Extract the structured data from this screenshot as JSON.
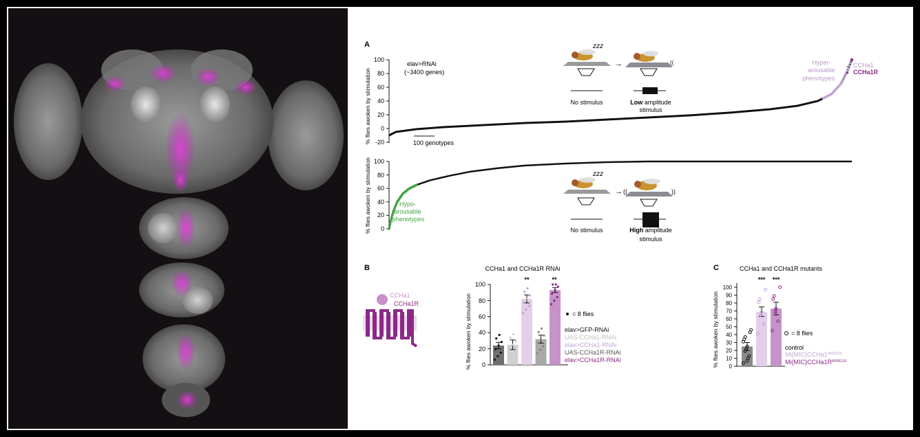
{
  "colors": {
    "black": "#111111",
    "hyper": "#c3a4d6",
    "ccha1r": "#8b2a86",
    "green": "#46a446",
    "grey_bar": "#6f6f6f",
    "light_grey_bar": "#d0d0d0",
    "light_purple_bar": "#e3cfe8",
    "mid_purple_bar": "#c692c9"
  },
  "panel_a": {
    "label": "A",
    "top": {
      "title_line1": "elav>RNAi",
      "title_line2": "(~3400 genes)",
      "ylabel": "% flies awoken by stimulation",
      "yticks": [
        "100",
        "80",
        "60",
        "40",
        "20",
        "0",
        "-20"
      ],
      "scalebar": "100 genotypes",
      "annotation_line1": "Hyper-",
      "annotation_line2": "arousable",
      "annotation_line3": "phenotypes",
      "marker1": "CCHa1",
      "marker2": "CCHa1R",
      "stim_left": "No stimulus",
      "stim_right_bold": "Low",
      "stim_right_rest": " amplitude",
      "stim_right_line2": "stimulus",
      "zzz": "zzz"
    },
    "bottom": {
      "ylabel": "% flies awoken by stimulation",
      "yticks": [
        "100",
        "80",
        "60",
        "40",
        "20",
        "0"
      ],
      "annotation_line1": "Hypo-",
      "annotation_line2": "arousable",
      "annotation_line3": "phenotypes",
      "stim_left": "No stimulus",
      "stim_right_bold": "High",
      "stim_right_rest": " amplitude",
      "stim_right_line2": "stimulus",
      "zzz": "zzz"
    }
  },
  "panel_b": {
    "label": "B",
    "title": "CCHa1 and CCHa1R RNAi",
    "ylabel": "% flies awoken by stimulation",
    "yticks": [
      "100",
      "80",
      "60",
      "40",
      "20",
      "0"
    ],
    "receptor_ligand": "CCHa1",
    "receptor_name": "CCHa1R",
    "dot_legend": "= 8 flies",
    "legend": [
      "elav>GFP-RNAi",
      "UAS-CCHa1-RNAi",
      "elav>CCHa1-RNAi",
      "UAS-CCHa1R-RNAi",
      "elav>CCHa1R-RNAi"
    ],
    "sig": [
      "**",
      "**"
    ]
  },
  "panel_c": {
    "label": "C",
    "title": "CCHa1 and CCHa1R mutants",
    "ylabel": "% flies awoken by stimulation",
    "yticks": [
      "100",
      "90",
      "80",
      "70",
      "60",
      "50",
      "40",
      "30",
      "20",
      "10",
      "0"
    ],
    "dot_legend": "= 8 flies",
    "legend_control": "control",
    "legend_mut1": "Mi{MIC}CCHa1",
    "legend_mut1_sup": "MI09100",
    "legend_mut2": "Mi{MIC}CCHa1R",
    "legend_mut2_sup": "MI08118",
    "sig": [
      "***",
      "***"
    ]
  },
  "chart_data": [
    {
      "type": "scatter",
      "ylabel": "% flies awoken by stimulation",
      "ylim": [
        -20,
        100
      ],
      "x": [
        0,
        50,
        200,
        400,
        700,
        1000,
        1300,
        1600,
        1900,
        2200,
        2500,
        2800,
        3000,
        3150,
        3250,
        3320,
        3370,
        3400
      ],
      "y": [
        -10,
        -5,
        -1,
        2,
        5,
        8,
        10,
        13,
        16,
        19,
        23,
        28,
        33,
        40,
        50,
        65,
        85,
        100
      ]
    },
    {
      "type": "scatter",
      "ylabel": "% flies awoken by stimulation",
      "ylim": [
        0,
        100
      ],
      "x": [
        0,
        10,
        30,
        60,
        100,
        150,
        200,
        300,
        450,
        600,
        800,
        1000,
        1300,
        1600,
        1900,
        2200,
        3400
      ],
      "y": [
        0,
        10,
        25,
        40,
        52,
        60,
        65,
        72,
        79,
        85,
        90,
        94,
        97,
        99,
        100,
        100,
        100
      ]
    },
    {
      "type": "bar",
      "title": "CCHa1 and CCHa1R RNAi",
      "ylabel": "% flies awoken by stimulation",
      "ylim": [
        0,
        100
      ],
      "categories": [
        "elav>GFP-RNAi",
        "UAS-CCHa1-RNAi",
        "elav>CCHa1-RNAi",
        "UAS-CCHa1R-RNAi",
        "elav>CCHa1R-RNAi"
      ],
      "values": [
        24,
        25,
        82,
        32,
        93
      ],
      "errors": [
        4,
        6,
        5,
        5,
        3
      ]
    },
    {
      "type": "bar",
      "title": "CCHa1 and CCHa1R mutants",
      "ylabel": "% flies awoken by stimulation",
      "ylim": [
        0,
        100
      ],
      "categories": [
        "control",
        "Mi{MIC}CCHa1 MI09100",
        "Mi{MIC}CCHa1R MI08118"
      ],
      "values": [
        25,
        69,
        73
      ],
      "errors": [
        5,
        6,
        8
      ]
    }
  ]
}
